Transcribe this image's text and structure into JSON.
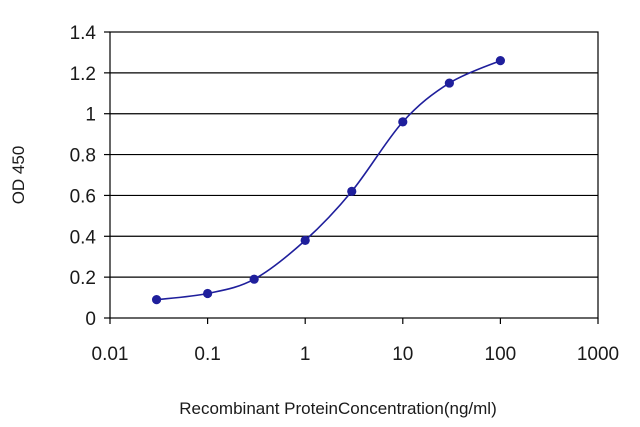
{
  "chart_data": {
    "type": "line",
    "xlabel": "Recombinant ProteinConcentration(ng/ml)",
    "ylabel": "OD 450",
    "x_scale": "log",
    "xlim": [
      0.01,
      1000
    ],
    "ylim": [
      0,
      1.4
    ],
    "x_ticks": [
      "0.01",
      "0.1",
      "1",
      "10",
      "100",
      "1000"
    ],
    "y_ticks": [
      "0",
      "0.2",
      "0.4",
      "0.6",
      "0.8",
      "1",
      "1.2",
      "1.4"
    ],
    "grid": "horizontal",
    "series": [
      {
        "color": "#1f1f9c",
        "x": [
          0.03,
          0.1,
          0.3,
          1,
          3,
          10,
          30,
          100
        ],
        "y": [
          0.09,
          0.12,
          0.19,
          0.38,
          0.62,
          0.96,
          1.15,
          1.26
        ]
      }
    ]
  }
}
